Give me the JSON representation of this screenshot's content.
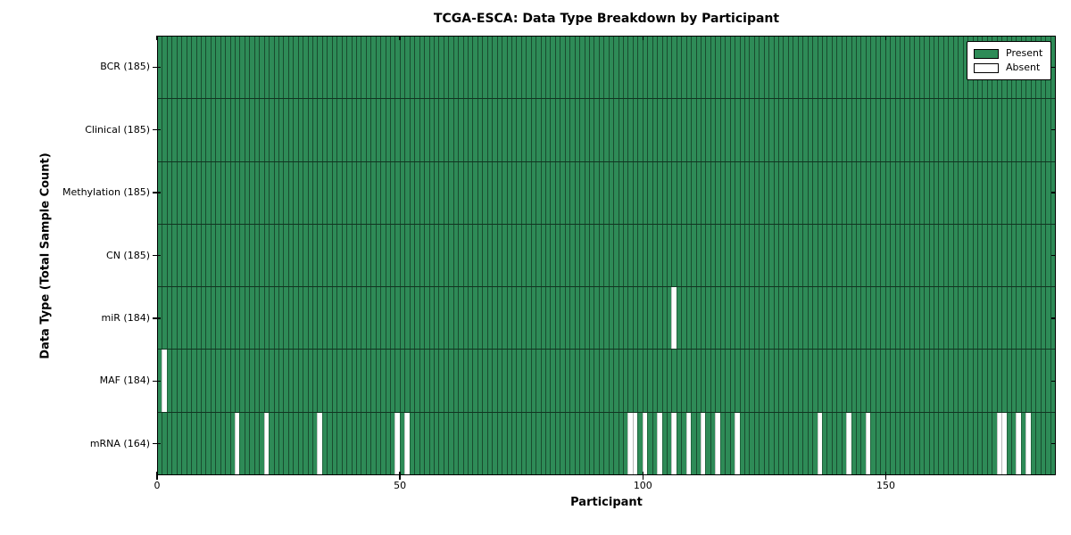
{
  "title": "TCGA-ESCA: Data Type Breakdown by Participant",
  "xlabel": "Participant",
  "ylabel": "Data Type (Total Sample Count)",
  "legend": {
    "present_label": "Present",
    "absent_label": "Absent"
  },
  "colors": {
    "present": "#2e8b57",
    "absent": "#ffffff",
    "edge": "#000000",
    "background": "#ffffff"
  },
  "chart_data": {
    "type": "heatmap",
    "title": "TCGA-ESCA: Data Type Breakdown by Participant",
    "xlabel": "Participant",
    "ylabel": "Data Type (Total Sample Count)",
    "n_participants": 185,
    "x_range": [
      0,
      185
    ],
    "x_ticks": [
      0,
      50,
      100,
      150
    ],
    "grid": false,
    "legend_position": "upper right",
    "legend_entries": [
      "Present",
      "Absent"
    ],
    "rows": [
      {
        "data_type": "BCR",
        "label": "BCR (185)",
        "present_count": 185,
        "absent_participants": []
      },
      {
        "data_type": "Clinical",
        "label": "Clinical (185)",
        "present_count": 185,
        "absent_participants": []
      },
      {
        "data_type": "Methylation",
        "label": "Methylation (185)",
        "present_count": 185,
        "absent_participants": []
      },
      {
        "data_type": "CN",
        "label": "CN (185)",
        "present_count": 185,
        "absent_participants": []
      },
      {
        "data_type": "miR",
        "label": "miR (184)",
        "present_count": 184,
        "absent_participants": [
          106
        ]
      },
      {
        "data_type": "MAF",
        "label": "MAF (184)",
        "present_count": 184,
        "absent_participants": [
          1
        ]
      },
      {
        "data_type": "mRNA",
        "label": "mRNA (164)",
        "present_count": 164,
        "absent_participants": [
          16,
          22,
          33,
          49,
          51,
          97,
          98,
          100,
          103,
          106,
          109,
          112,
          115,
          119,
          136,
          142,
          146,
          173,
          174,
          177,
          179
        ]
      }
    ]
  }
}
